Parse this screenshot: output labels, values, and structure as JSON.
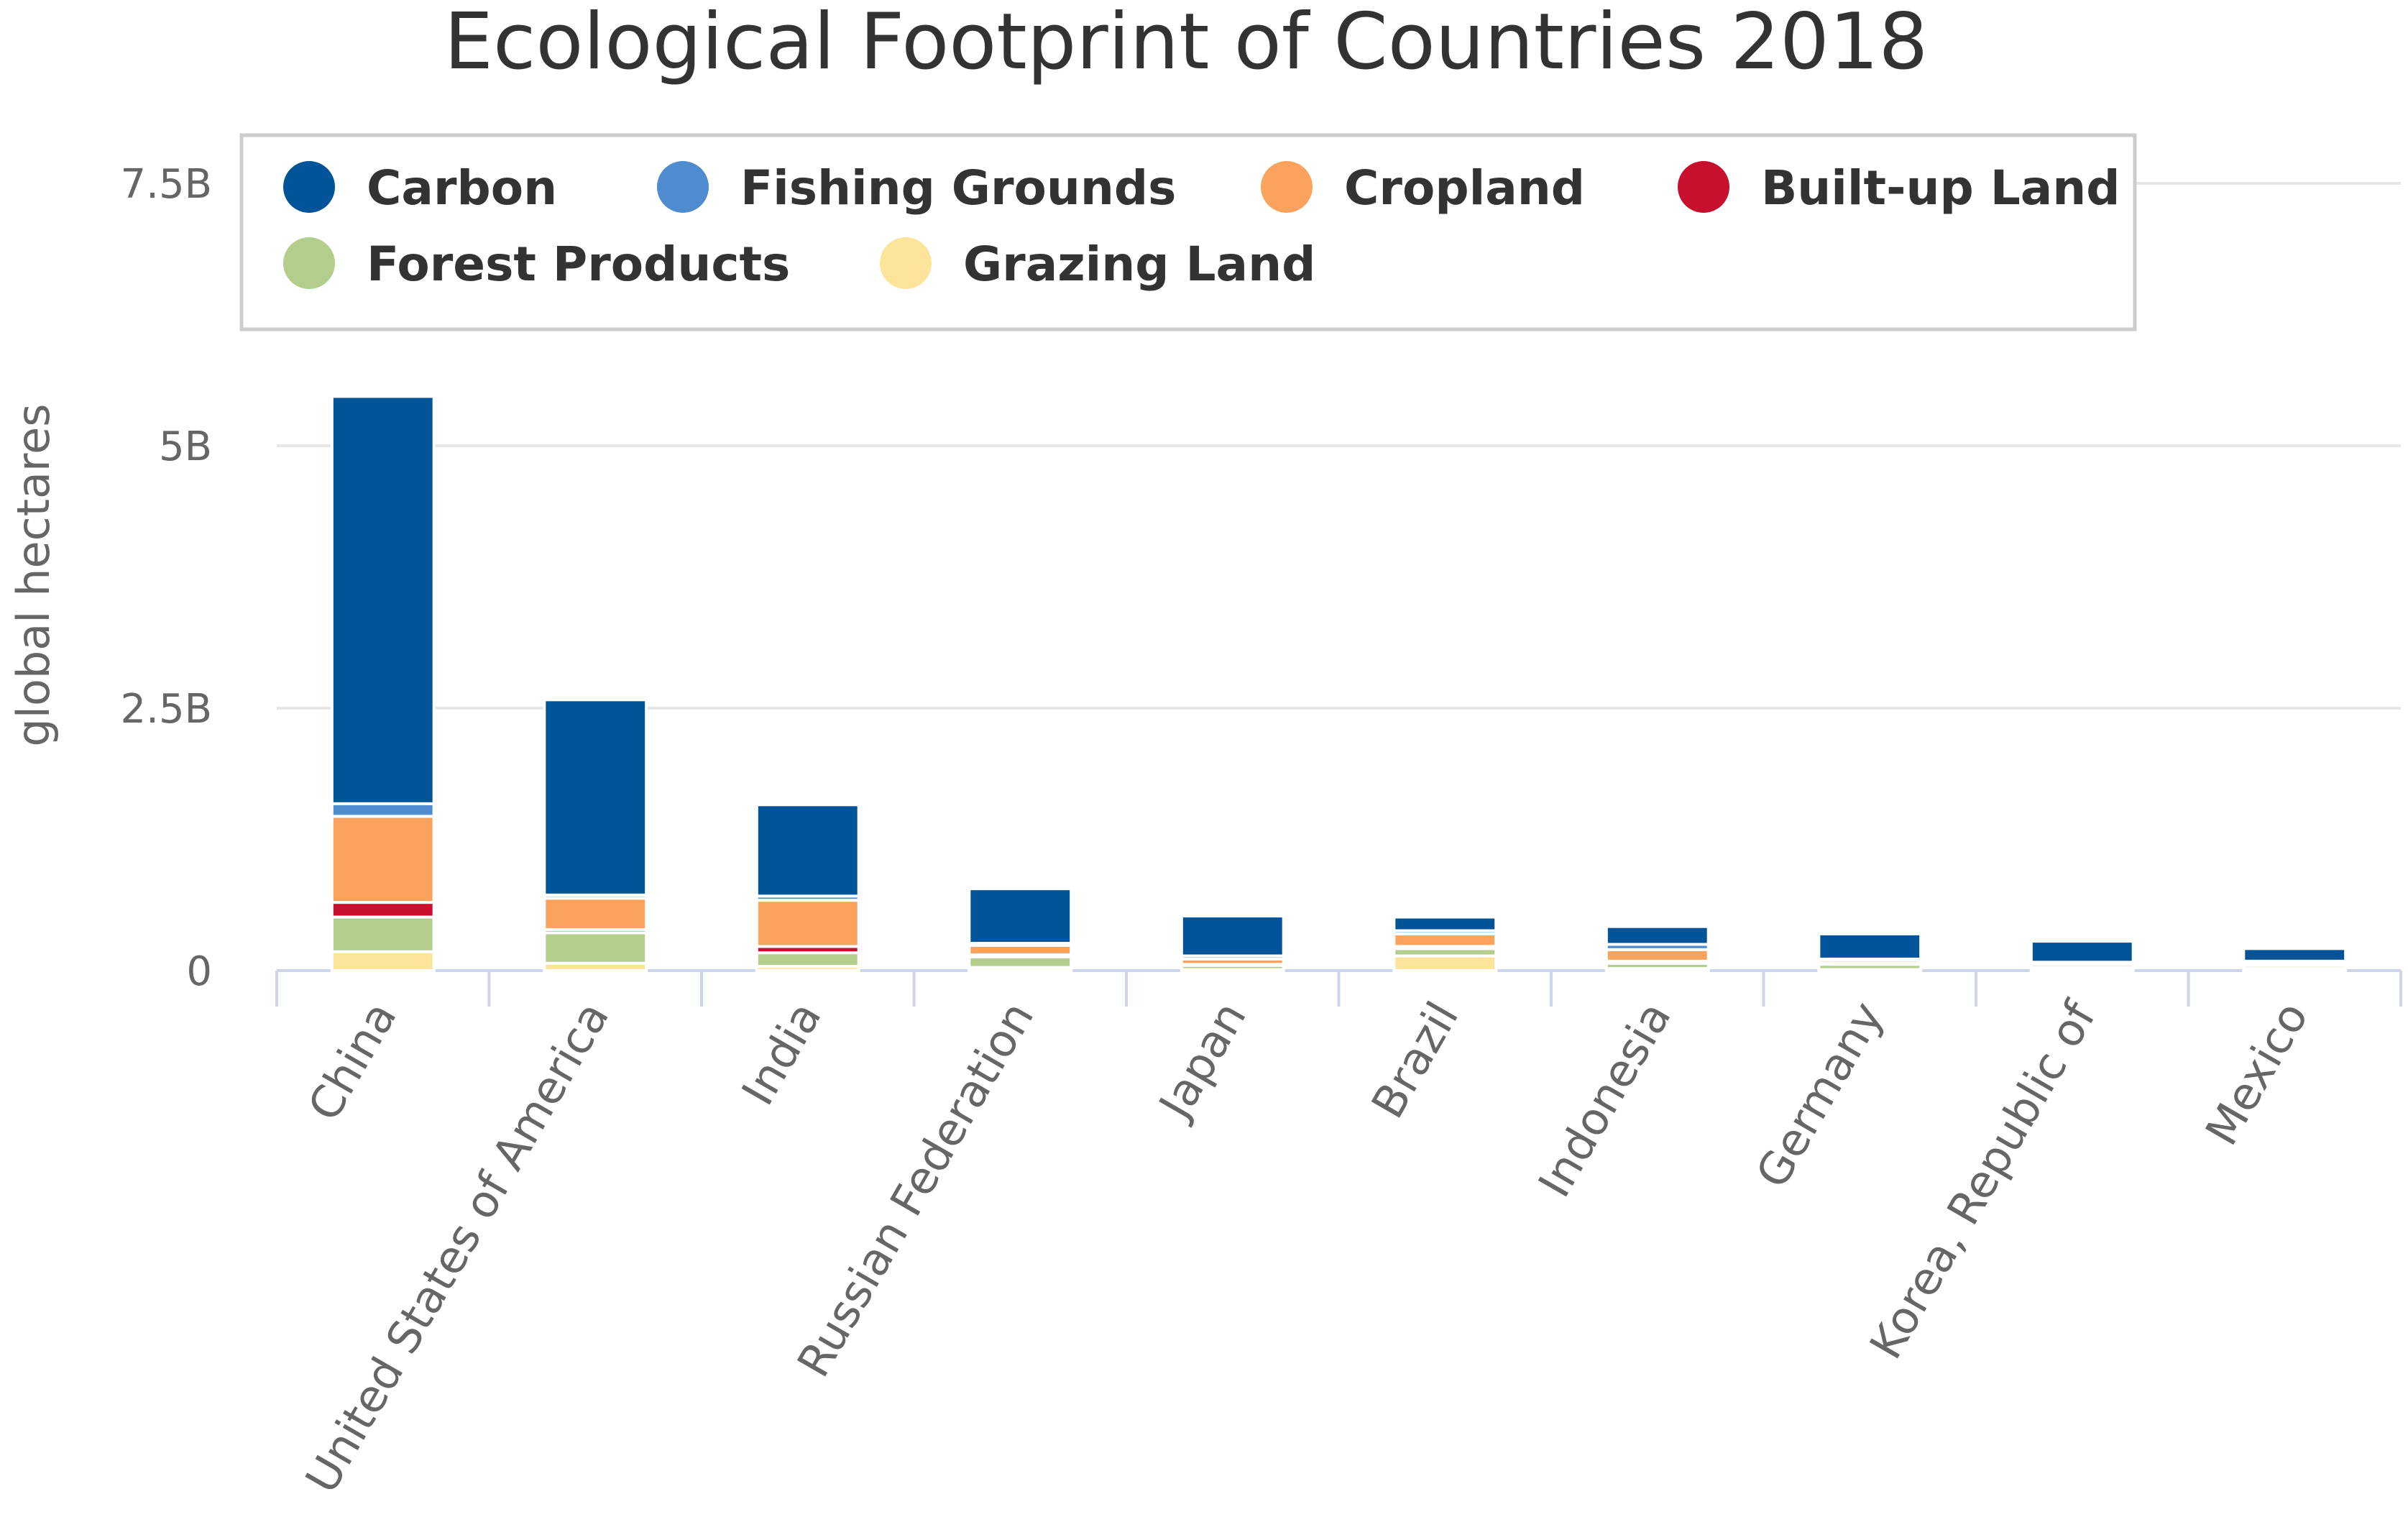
{
  "chart_data": {
    "type": "bar",
    "stacked": true,
    "title": "Ecological Footprint of Countries 2018",
    "xlabel": "",
    "ylabel": "global hectares",
    "ylim": [
      0,
      7500000000
    ],
    "yticks": [
      0,
      2500000000,
      5000000000,
      7500000000
    ],
    "ytick_labels": [
      "0",
      "2.5B",
      "5B",
      "7.5B"
    ],
    "grid": true,
    "legend_position": "top",
    "categories": [
      "China",
      "United States of America",
      "India",
      "Russian Federation",
      "Japan",
      "Brazil",
      "Indonesia",
      "Germany",
      "Korea, Republic of",
      "Mexico"
    ],
    "series": [
      {
        "name": "Grazing Land",
        "color": "#fde49b",
        "values": [
          180000000,
          70000000,
          40000000,
          30000000,
          10000000,
          140000000,
          20000000,
          10000000,
          5000000,
          20000000
        ]
      },
      {
        "name": "Forest Products",
        "color": "#b3cd8c",
        "values": [
          330000000,
          290000000,
          130000000,
          100000000,
          40000000,
          70000000,
          50000000,
          50000000,
          20000000,
          30000000
        ]
      },
      {
        "name": "Built-up Land",
        "color": "#c8102e",
        "values": [
          140000000,
          30000000,
          60000000,
          20000000,
          10000000,
          20000000,
          20000000,
          10000000,
          5000000,
          10000000
        ]
      },
      {
        "name": "Cropland",
        "color": "#fba25e",
        "values": [
          820000000,
          300000000,
          440000000,
          90000000,
          50000000,
          120000000,
          110000000,
          30000000,
          30000000,
          20000000
        ]
      },
      {
        "name": "Fishing Grounds",
        "color": "#4e8ccf",
        "values": [
          120000000,
          30000000,
          40000000,
          20000000,
          30000000,
          30000000,
          50000000,
          10000000,
          20000000,
          10000000
        ]
      },
      {
        "name": "Carbon",
        "color": "#005497",
        "values": [
          3880000000,
          1860000000,
          870000000,
          520000000,
          380000000,
          130000000,
          170000000,
          240000000,
          200000000,
          120000000
        ]
      }
    ],
    "legend": [
      {
        "name": "Carbon",
        "color": "#005497"
      },
      {
        "name": "Fishing Grounds",
        "color": "#4e8ccf"
      },
      {
        "name": "Cropland",
        "color": "#fba25e"
      },
      {
        "name": "Built-up Land",
        "color": "#c8102e"
      },
      {
        "name": "Forest Products",
        "color": "#b3cd8c"
      },
      {
        "name": "Grazing Land",
        "color": "#fde49b"
      }
    ]
  }
}
